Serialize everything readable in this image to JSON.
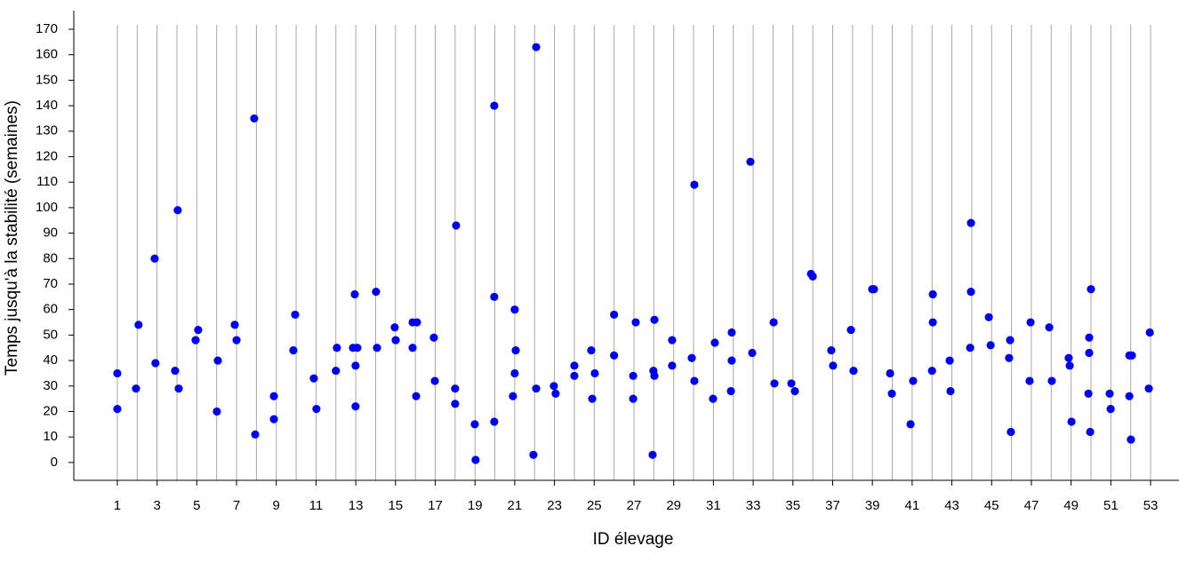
{
  "chart_data": {
    "type": "scatter",
    "x_label": "ID élevage",
    "y_label": "Temps jusqu'à la stabilité (semaines)",
    "color": "#0000e6",
    "grid": true,
    "xlim": [
      -1.19,
      54.43
    ],
    "ylim": [
      -7,
      177.3
    ],
    "xticks": [
      1,
      3,
      5,
      7,
      9,
      11,
      13,
      15,
      17,
      19,
      21,
      23,
      25,
      27,
      29,
      31,
      33,
      35,
      37,
      39,
      41,
      43,
      45,
      47,
      49,
      51,
      53
    ],
    "yticks": [
      0,
      10,
      20,
      30,
      40,
      50,
      60,
      70,
      80,
      90,
      100,
      110,
      120,
      130,
      140,
      150,
      160,
      170
    ],
    "x": [
      1.0,
      1.0,
      1.94,
      2.07,
      2.88,
      2.92,
      3.91,
      4.04,
      4.09,
      4.94,
      5.07,
      6.06,
      6.01,
      6.91,
      7.0,
      7.89,
      7.94,
      8.88,
      8.88,
      9.95,
      9.86,
      10.89,
      11.02,
      12.05,
      12.0,
      12.95,
      12.86,
      13.08,
      12.99,
      12.99,
      14.02,
      14.07,
      14.96,
      15.01,
      15.86,
      16.08,
      15.86,
      16.04,
      16.93,
      16.98,
      18.05,
      18.0,
      18.0,
      18.99,
      19.03,
      19.97,
      19.97,
      19.97,
      21.0,
      21.05,
      21.0,
      20.91,
      22.08,
      22.08,
      21.94,
      22.97,
      23.06,
      24.0,
      24.0,
      24.85,
      25.03,
      24.9,
      26.0,
      26.0,
      27.09,
      26.96,
      26.96,
      28.03,
      27.98,
      28.03,
      27.94,
      28.92,
      28.92,
      30.04,
      29.91,
      30.04,
      31.07,
      30.98,
      31.92,
      31.92,
      31.88,
      32.86,
      32.95,
      34.03,
      34.07,
      34.92,
      35.1,
      35.91,
      36.0,
      36.93,
      37.02,
      37.92,
      38.05,
      38.99,
      39.08,
      39.89,
      39.98,
      40.92,
      41.05,
      42.04,
      42.04,
      42.0,
      42.89,
      42.93,
      43.96,
      43.96,
      43.92,
      44.86,
      44.95,
      45.93,
      45.88,
      45.97,
      46.96,
      46.91,
      47.9,
      48.03,
      48.88,
      48.93,
      49.02,
      50.0,
      49.91,
      49.91,
      49.87,
      49.96,
      50.94,
      50.99,
      51.93,
      52.06,
      51.93,
      52.01,
      52.96,
      52.91
    ],
    "values": [
      35,
      21,
      29,
      54,
      80,
      39,
      36,
      99,
      29,
      48,
      52,
      40,
      20,
      54,
      48,
      135,
      11,
      26,
      17,
      58,
      44,
      33,
      21,
      45,
      36,
      66,
      45,
      45,
      38,
      22,
      67,
      45,
      53,
      48,
      55,
      55,
      45,
      26,
      49,
      32,
      93,
      29,
      23,
      15,
      1,
      140,
      65,
      16,
      60,
      44,
      35,
      26,
      163,
      29,
      3,
      30,
      27,
      38,
      34,
      44,
      35,
      25,
      58,
      42,
      55,
      34,
      25,
      56,
      36,
      34,
      3,
      48,
      38,
      109,
      41,
      32,
      47,
      25,
      51,
      40,
      28,
      118,
      43,
      55,
      31,
      31,
      28,
      74,
      73,
      44,
      38,
      52,
      36,
      68,
      68,
      35,
      27,
      15,
      32,
      66,
      55,
      36,
      40,
      28,
      94,
      67,
      45,
      57,
      46,
      48,
      41,
      12,
      55,
      32,
      53,
      32,
      41,
      38,
      16,
      68,
      49,
      43,
      27,
      12,
      27,
      21,
      42,
      42,
      26,
      9,
      51,
      29
    ]
  }
}
